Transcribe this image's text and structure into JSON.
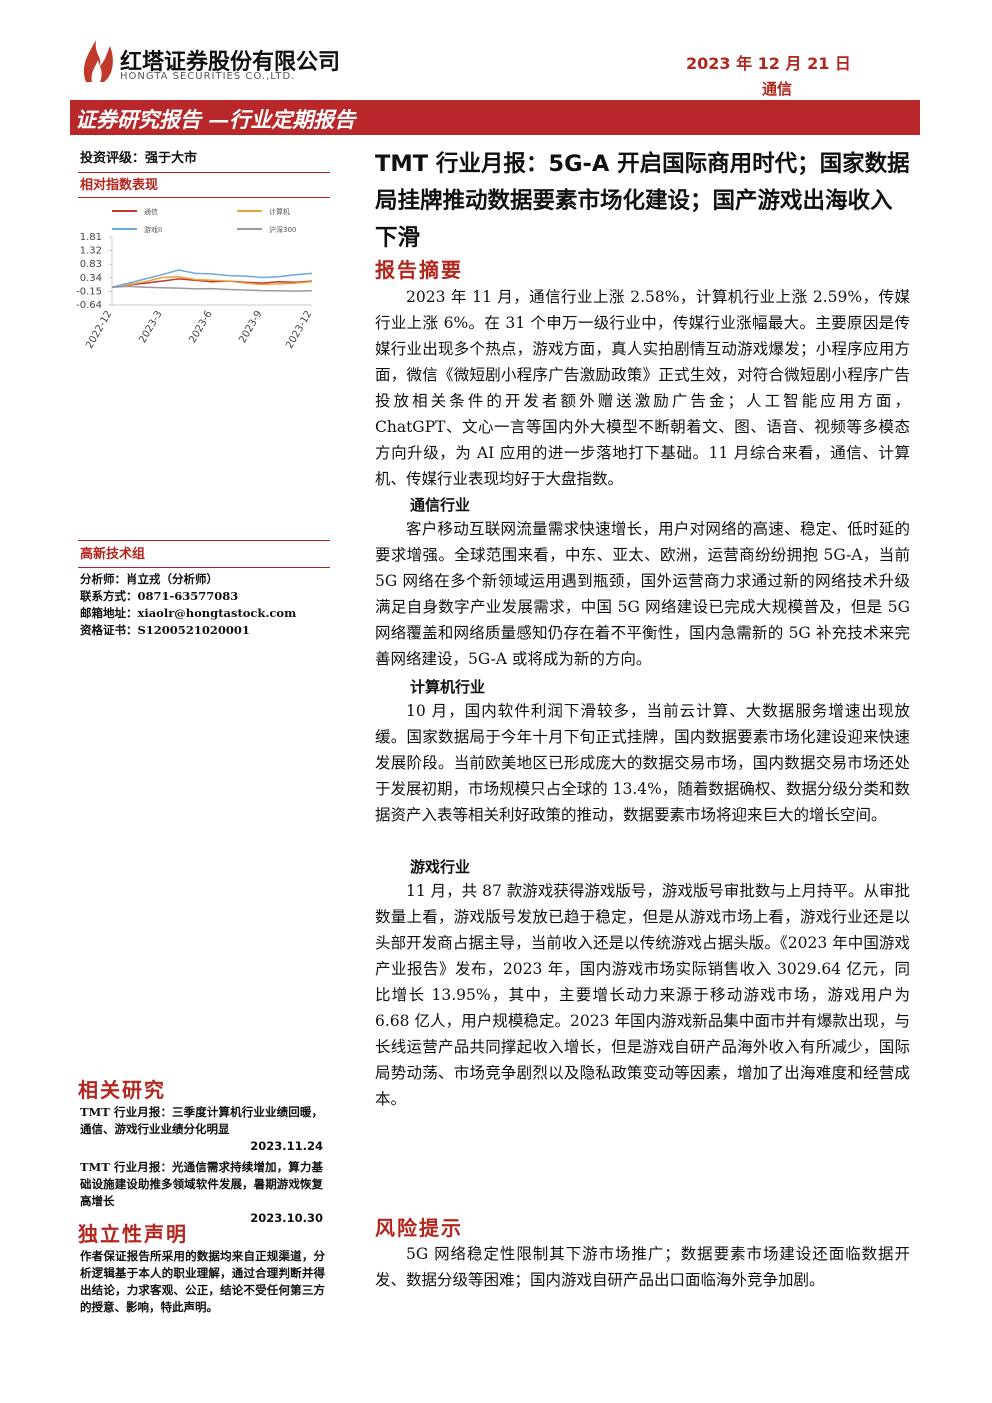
{
  "header": {
    "company": "红塔证券股份有限公司",
    "company_en": "HONGTA SECURITIES CO.,LTD.",
    "date": "2023 年 12 月 21 日",
    "industry": "通信",
    "banner": "证券研究报告 —行业定期报告"
  },
  "sidebar": {
    "rating": "投资评级：强于大市",
    "chart_heading": "相对指数表现",
    "team": "高新技术组",
    "analyst": [
      {
        "label": "分析师：",
        "value": "肖立戎（分析师）"
      },
      {
        "label": "联系方式：",
        "value": "0871-63577083"
      },
      {
        "label": "邮箱地址：",
        "value": "xiaolr@hongtastock.com"
      },
      {
        "label": "资格证书：",
        "value": "S1200521020001"
      }
    ],
    "related_heading": "相关研究",
    "related": [
      {
        "title": "TMT 行业月报：三季度计算机行业业绩回暖，通信、游戏行业业绩分化明显",
        "date": "2023.11.24"
      },
      {
        "title": "TMT 行业月报：光通信需求持续增加，算力基础设施建设助推多领域软件发展，暑期游戏恢复高增长",
        "date": "2023.10.30"
      }
    ],
    "disclaimer_heading": "独立性声明",
    "disclaimer": "作者保证报告所采用的数据均来自正规渠道，分析逻辑基于本人的职业理解，通过合理判断并得出结论，力求客观、公正，结论不受任何第三方的授意、影响，特此声明。"
  },
  "chart_data": {
    "type": "line",
    "categories": [
      "2022-12",
      null,
      null,
      "2023-3",
      null,
      null,
      "2023-6",
      null,
      null,
      "2023-9",
      null,
      null,
      "2023-12"
    ],
    "series": [
      {
        "name": "通信",
        "color": "#c0392b",
        "values": [
          0,
          0.08,
          0.15,
          0.22,
          0.3,
          0.25,
          0.2,
          0.22,
          0.18,
          0.15,
          0.2,
          0.18,
          0.22
        ]
      },
      {
        "name": "计算机",
        "color": "#e8a33d",
        "values": [
          0,
          0.1,
          0.2,
          0.35,
          0.38,
          0.28,
          0.25,
          0.22,
          0.15,
          0.1,
          0.12,
          0.15,
          0.2
        ]
      },
      {
        "name": "游戏II",
        "color": "#6fa8dc",
        "values": [
          0,
          0.15,
          0.3,
          0.45,
          0.62,
          0.5,
          0.48,
          0.42,
          0.4,
          0.35,
          0.38,
          0.45,
          0.5
        ]
      },
      {
        "name": "沪深300",
        "color": "#9a9a9a",
        "values": [
          0,
          0.03,
          0,
          -0.02,
          -0.03,
          -0.06,
          -0.05,
          -0.08,
          -0.1,
          -0.12,
          -0.13,
          -0.14,
          -0.13
        ]
      }
    ],
    "ylim": [
      -0.64,
      1.81
    ],
    "yticks": [
      1.81,
      1.32,
      0.83,
      0.34,
      -0.15,
      -0.64
    ]
  },
  "main": {
    "title": "TMT 行业月报：5G-A 开启国际商用时代；国家数据局挂牌推动数据要素市场化建设；国产游戏出海收入下滑",
    "summary_heading": "报告摘要",
    "intro": "2023 年 11 月，通信行业上涨 2.58%，计算机行业上涨 2.59%，传媒行业上涨 6%。在 31 个申万一级行业中，传媒行业涨幅最大。主要原因是传媒行业出现多个热点，游戏方面，真人实拍剧情互动游戏爆发；小程序应用方面，微信《微短剧小程序广告激励政策》正式生效，对符合微短剧小程序广告投放相关条件的开发者额外赠送激励广告金；人工智能应用方面，ChatGPT、文心一言等国内外大模型不断朝着文、图、语音、视频等多模态方向升级，为 AI 应用的进一步落地打下基础。11 月综合来看，通信、计算机、传媒行业表现均好于大盘指数。",
    "sections": [
      {
        "heading": "通信行业",
        "text": "客户移动互联网流量需求快速增长，用户对网络的高速、稳定、低时延的要求增强。全球范围来看，中东、亚太、欧洲，运营商纷纷拥抱 5G-A，当前 5G 网络在多个新领域运用遇到瓶颈，国外运营商力求通过新的网络技术升级满足自身数字产业发展需求，中国 5G 网络建设已完成大规模普及，但是 5G 网络覆盖和网络质量感知仍存在着不平衡性，国内急需新的 5G 补充技术来完善网络建设，5G-A 或将成为新的方向。"
      },
      {
        "heading": "计算机行业",
        "text": "10 月，国内软件利润下滑较多，当前云计算、大数据服务增速出现放缓。国家数据局于今年十月下旬正式挂牌，国内数据要素市场化建设迎来快速发展阶段。当前欧美地区已形成庞大的数据交易市场，国内数据交易市场还处于发展初期，市场规模只占全球的 13.4%，随着数据确权、数据分级分类和数据资产入表等相关利好政策的推动，数据要素市场将迎来巨大的增长空间。"
      },
      {
        "heading": "游戏行业",
        "text": "11 月，共 87 款游戏获得游戏版号，游戏版号审批数与上月持平。从审批数量上看，游戏版号发放已趋于稳定，但是从游戏市场上看，游戏行业还是以头部开发商占据主导，当前收入还是以传统游戏占据头版。《2023 年中国游戏产业报告》发布，2023 年，国内游戏市场实际销售收入 3029.64 亿元，同比增长 13.95%，其中，主要增长动力来源于移动游戏市场，游戏用户为 6.68 亿人，用户规模稳定。2023 年国内游戏新品集中面市并有爆款出现，与长线运营产品共同撑起收入增长，但是游戏自研产品海外收入有所减少，国际局势动荡、市场竞争剧烈以及隐私政策变动等因素，增加了出海难度和经营成本。"
      }
    ],
    "risk_heading": "风险提示",
    "risk_text": "5G 网络稳定性限制其下游市场推广；数据要素市场建设还面临数据开发、数据分级等困难；国内游戏自研产品出口面临海外竞争加剧。"
  }
}
